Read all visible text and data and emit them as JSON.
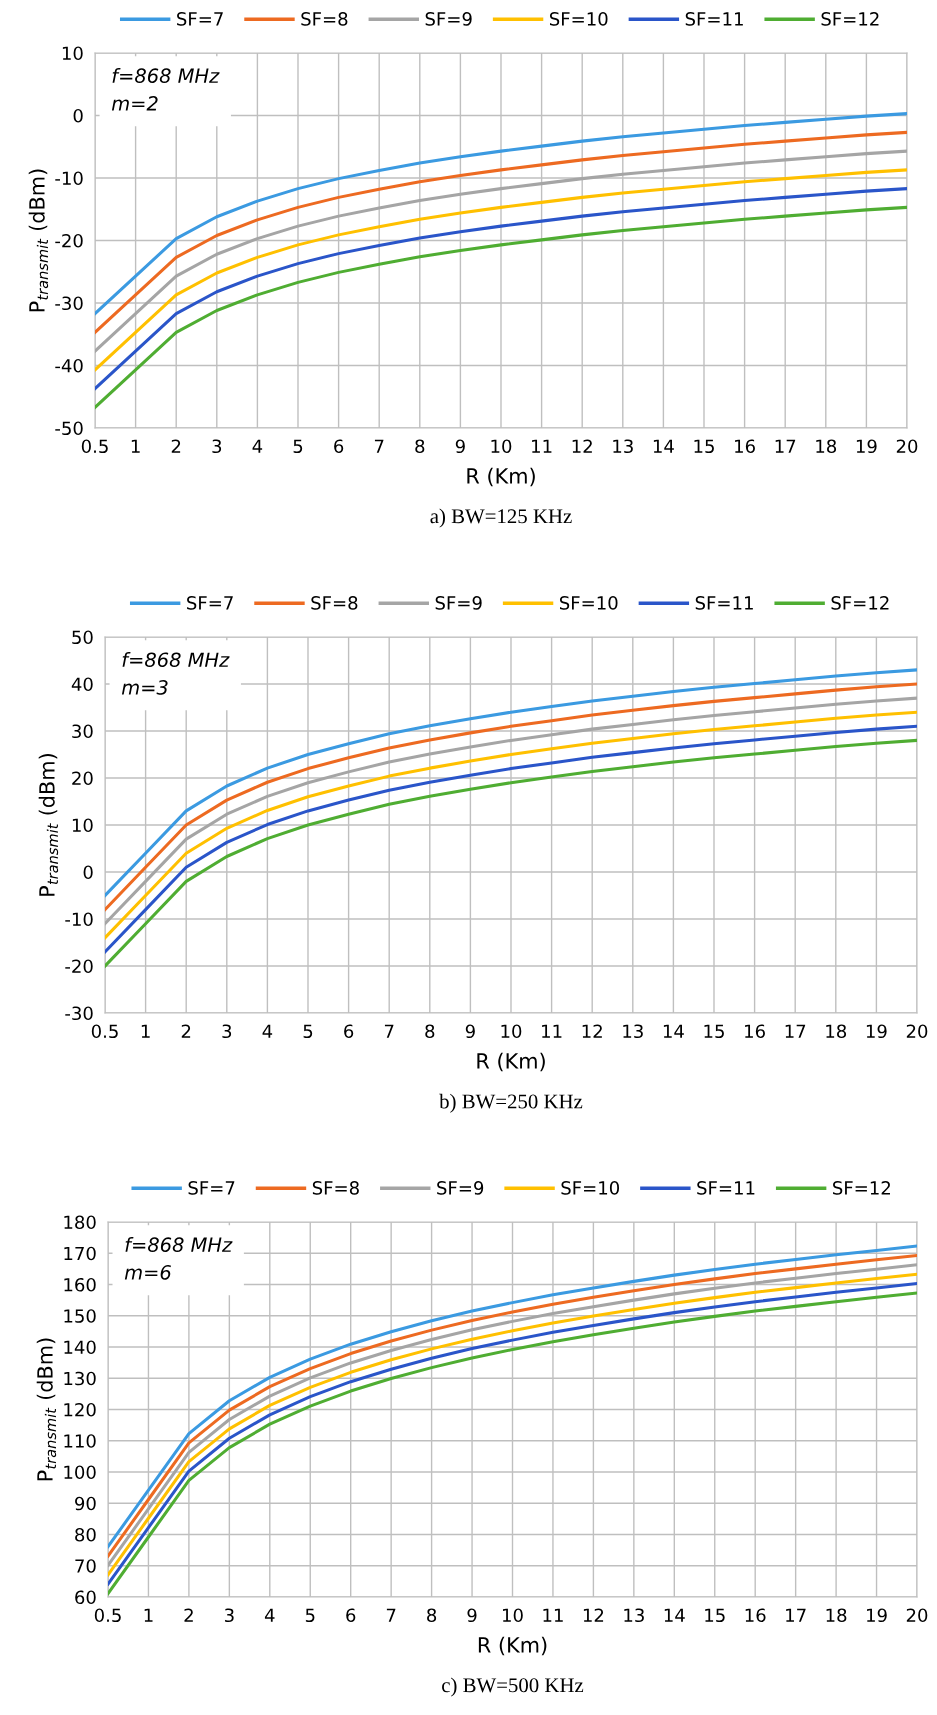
{
  "chart_data": [
    {
      "type": "line",
      "title": "a) BW=125 KHz",
      "xlabel": "R (Km)",
      "ylabel": "P$_{transmit}$ (dBm)",
      "annotations": [
        "f=868 MHz",
        "m=2"
      ],
      "categories": [
        "0.5",
        "1",
        "2",
        "3",
        "4",
        "5",
        "6",
        "7",
        "8",
        "9",
        "10",
        "11",
        "12",
        "13",
        "14",
        "15",
        "16",
        "17",
        "18",
        "19",
        "20"
      ],
      "ylim": [
        -50,
        10
      ],
      "yticks": [
        -50,
        -40,
        -30,
        -20,
        -10,
        0,
        10
      ],
      "grid": true,
      "legend": "top",
      "marker": "none",
      "line_style": "solid",
      "series": [
        {
          "name": "SF=7",
          "color": "#3b9ae1",
          "values": [
            -31.7,
            -25.7,
            -19.7,
            -16.2,
            -13.7,
            -11.7,
            -10.1,
            -8.8,
            -7.6,
            -6.6,
            -5.7,
            -4.9,
            -4.1,
            -3.4,
            -2.8,
            -2.2,
            -1.6,
            -1.1,
            -0.6,
            -0.1,
            0.3
          ]
        },
        {
          "name": "SF=8",
          "color": "#ed6a21",
          "values": [
            -34.7,
            -28.7,
            -22.7,
            -19.2,
            -16.7,
            -14.7,
            -13.1,
            -11.8,
            -10.6,
            -9.6,
            -8.7,
            -7.9,
            -7.1,
            -6.4,
            -5.8,
            -5.2,
            -4.6,
            -4.1,
            -3.6,
            -3.1,
            -2.7
          ]
        },
        {
          "name": "SF=9",
          "color": "#a5a5a5",
          "values": [
            -37.7,
            -31.7,
            -25.7,
            -22.2,
            -19.7,
            -17.7,
            -16.1,
            -14.8,
            -13.6,
            -12.6,
            -11.7,
            -10.9,
            -10.1,
            -9.4,
            -8.8,
            -8.2,
            -7.6,
            -7.1,
            -6.6,
            -6.1,
            -5.7
          ]
        },
        {
          "name": "SF=10",
          "color": "#ffc000",
          "values": [
            -40.7,
            -34.7,
            -28.7,
            -25.2,
            -22.7,
            -20.7,
            -19.1,
            -17.8,
            -16.6,
            -15.6,
            -14.7,
            -13.9,
            -13.1,
            -12.4,
            -11.8,
            -11.2,
            -10.6,
            -10.1,
            -9.6,
            -9.1,
            -8.7
          ]
        },
        {
          "name": "SF=11",
          "color": "#2a55c9",
          "values": [
            -43.7,
            -37.7,
            -31.7,
            -28.2,
            -25.7,
            -23.7,
            -22.1,
            -20.8,
            -19.6,
            -18.6,
            -17.7,
            -16.9,
            -16.1,
            -15.4,
            -14.8,
            -14.2,
            -13.6,
            -13.1,
            -12.6,
            -12.1,
            -11.7
          ]
        },
        {
          "name": "SF=12",
          "color": "#4fad32",
          "values": [
            -46.7,
            -40.7,
            -34.7,
            -31.2,
            -28.7,
            -26.7,
            -25.1,
            -23.8,
            -22.6,
            -21.6,
            -20.7,
            -19.9,
            -19.1,
            -18.4,
            -17.8,
            -17.2,
            -16.6,
            -16.1,
            -15.6,
            -15.1,
            -14.7
          ]
        }
      ]
    },
    {
      "type": "line",
      "title": "b) BW=250 KHz",
      "xlabel": "R (Km)",
      "ylabel": "P$_{transmit}$ (dBm)",
      "annotations": [
        "f=868 MHz",
        "m=3"
      ],
      "categories": [
        "0.5",
        "1",
        "2",
        "3",
        "4",
        "5",
        "6",
        "7",
        "8",
        "9",
        "10",
        "11",
        "12",
        "13",
        "14",
        "15",
        "16",
        "17",
        "18",
        "19",
        "20"
      ],
      "ylim": [
        -30,
        50
      ],
      "yticks": [
        -30,
        -20,
        -10,
        0,
        10,
        20,
        30,
        40,
        50
      ],
      "grid": true,
      "legend": "top",
      "marker": "none",
      "line_style": "solid",
      "series": [
        {
          "name": "SF=7",
          "color": "#3b9ae1",
          "values": [
            -5.0,
            4.0,
            13.0,
            18.3,
            22.1,
            25.0,
            27.3,
            29.4,
            31.1,
            32.6,
            34.0,
            35.2,
            36.4,
            37.4,
            38.4,
            39.3,
            40.1,
            40.9,
            41.7,
            42.4,
            43.0
          ]
        },
        {
          "name": "SF=8",
          "color": "#ed6a21",
          "values": [
            -8.0,
            1.0,
            10.0,
            15.3,
            19.1,
            22.0,
            24.3,
            26.4,
            28.1,
            29.6,
            31.0,
            32.2,
            33.4,
            34.4,
            35.4,
            36.3,
            37.1,
            37.9,
            38.7,
            39.4,
            40.0
          ]
        },
        {
          "name": "SF=9",
          "color": "#a5a5a5",
          "values": [
            -11.0,
            -2.0,
            7.0,
            12.3,
            16.1,
            19.0,
            21.3,
            23.4,
            25.1,
            26.6,
            28.0,
            29.2,
            30.4,
            31.4,
            32.4,
            33.3,
            34.1,
            34.9,
            35.7,
            36.4,
            37.0
          ]
        },
        {
          "name": "SF=10",
          "color": "#ffc000",
          "values": [
            -14.0,
            -5.0,
            4.0,
            9.3,
            13.1,
            16.0,
            18.3,
            20.4,
            22.1,
            23.6,
            25.0,
            26.2,
            27.4,
            28.4,
            29.4,
            30.3,
            31.1,
            31.9,
            32.7,
            33.4,
            34.0
          ]
        },
        {
          "name": "SF=11",
          "color": "#2a55c9",
          "values": [
            -17.0,
            -8.0,
            1.0,
            6.3,
            10.1,
            13.0,
            15.3,
            17.4,
            19.1,
            20.6,
            22.0,
            23.2,
            24.4,
            25.4,
            26.4,
            27.3,
            28.1,
            28.9,
            29.7,
            30.4,
            31.0
          ]
        },
        {
          "name": "SF=12",
          "color": "#4fad32",
          "values": [
            -20.0,
            -11.0,
            -2.0,
            3.3,
            7.1,
            10.0,
            12.3,
            14.4,
            16.1,
            17.6,
            19.0,
            20.2,
            21.4,
            22.4,
            23.4,
            24.3,
            25.1,
            25.9,
            26.7,
            27.4,
            28.0
          ]
        }
      ]
    },
    {
      "type": "line",
      "title": "c) BW=500 KHz",
      "xlabel": "R (Km)",
      "ylabel": "P$_{transmit}$ (dBm)",
      "annotations": [
        "f=868 MHz",
        "m=6"
      ],
      "categories": [
        "0.5",
        "1",
        "2",
        "3",
        "4",
        "5",
        "6",
        "7",
        "8",
        "9",
        "10",
        "11",
        "12",
        "13",
        "14",
        "15",
        "16",
        "17",
        "18",
        "19",
        "20"
      ],
      "ylim": [
        60,
        180
      ],
      "yticks": [
        60,
        70,
        80,
        90,
        100,
        110,
        120,
        130,
        140,
        150,
        160,
        170,
        180
      ],
      "grid": true,
      "legend": "top",
      "marker": "none",
      "line_style": "solid",
      "series": [
        {
          "name": "SF=7",
          "color": "#3b9ae1",
          "values": [
            76.1,
            94.2,
            112.3,
            122.8,
            130.3,
            136.1,
            140.9,
            144.9,
            148.4,
            151.5,
            154.2,
            156.7,
            158.9,
            161.0,
            163.0,
            164.8,
            166.5,
            168.0,
            169.5,
            170.9,
            172.3
          ]
        },
        {
          "name": "SF=8",
          "color": "#ed6a21",
          "values": [
            73.1,
            91.2,
            109.3,
            119.8,
            127.3,
            133.1,
            137.9,
            141.9,
            145.4,
            148.5,
            151.2,
            153.7,
            155.9,
            158.0,
            160.0,
            161.8,
            163.5,
            165.0,
            166.5,
            167.9,
            169.3
          ]
        },
        {
          "name": "SF=9",
          "color": "#a5a5a5",
          "values": [
            70.1,
            88.2,
            106.3,
            116.8,
            124.3,
            130.1,
            134.9,
            138.9,
            142.4,
            145.5,
            148.2,
            150.7,
            152.9,
            155.0,
            157.0,
            158.8,
            160.5,
            162.0,
            163.5,
            164.9,
            166.3
          ]
        },
        {
          "name": "SF=10",
          "color": "#ffc000",
          "values": [
            67.1,
            85.2,
            103.3,
            113.8,
            121.3,
            127.1,
            131.9,
            135.9,
            139.4,
            142.5,
            145.2,
            147.7,
            149.9,
            152.0,
            154.0,
            155.8,
            157.5,
            159.0,
            160.5,
            161.9,
            163.3
          ]
        },
        {
          "name": "SF=11",
          "color": "#2a55c9",
          "values": [
            64.1,
            82.2,
            100.3,
            110.8,
            118.3,
            124.1,
            128.9,
            132.9,
            136.4,
            139.5,
            142.2,
            144.7,
            146.9,
            149.0,
            151.0,
            152.8,
            154.5,
            156.0,
            157.5,
            158.9,
            160.3
          ]
        },
        {
          "name": "SF=12",
          "color": "#4fad32",
          "values": [
            61.1,
            79.2,
            97.3,
            107.8,
            115.3,
            121.1,
            125.9,
            129.9,
            133.4,
            136.5,
            139.2,
            141.7,
            143.9,
            146.0,
            148.0,
            149.8,
            151.5,
            153.0,
            154.5,
            155.9,
            157.3
          ]
        }
      ]
    }
  ]
}
